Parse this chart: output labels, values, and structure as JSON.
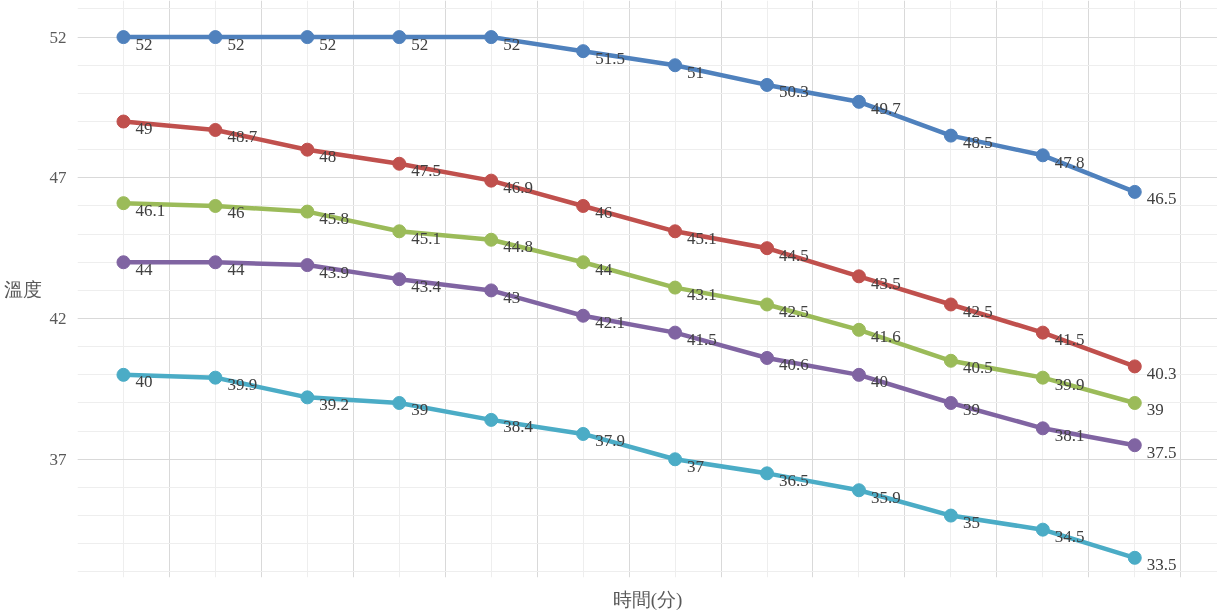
{
  "chart_data": {
    "type": "line",
    "xlabel": "時間(分)",
    "ylabel": "溫度",
    "categories": [
      null,
      null,
      null,
      null,
      null,
      null,
      null,
      null,
      null,
      null,
      null,
      null
    ],
    "ylim": [
      32.8,
      53.3
    ],
    "yticks": [
      37,
      42,
      47,
      52
    ],
    "grid": true,
    "marker": "circle",
    "line_style": "solid",
    "data_labels": true,
    "tick_labels": "y",
    "series": [
      {
        "color": "#4f81bd",
        "values": [
          52,
          52,
          52,
          52,
          52,
          51.5,
          51,
          50.3,
          49.7,
          48.5,
          47.8,
          46.5
        ]
      },
      {
        "color": "#c0504d",
        "values": [
          49,
          48.7,
          48,
          47.5,
          46.9,
          46,
          45.1,
          44.5,
          43.5,
          42.5,
          41.5,
          40.3
        ]
      },
      {
        "color": "#9bbb59",
        "values": [
          46.1,
          46,
          45.8,
          45.1,
          44.8,
          44,
          43.1,
          42.5,
          41.6,
          40.5,
          39.9,
          39
        ]
      },
      {
        "color": "#8064a2",
        "values": [
          44,
          44,
          43.9,
          43.4,
          43,
          42.1,
          41.5,
          40.6,
          40,
          39,
          38.1,
          37.5
        ]
      },
      {
        "color": "#4bacc6",
        "values": [
          40,
          39.9,
          39.2,
          39,
          38.4,
          37.9,
          37,
          36.5,
          35.9,
          35,
          34.5,
          33.5
        ]
      }
    ]
  }
}
